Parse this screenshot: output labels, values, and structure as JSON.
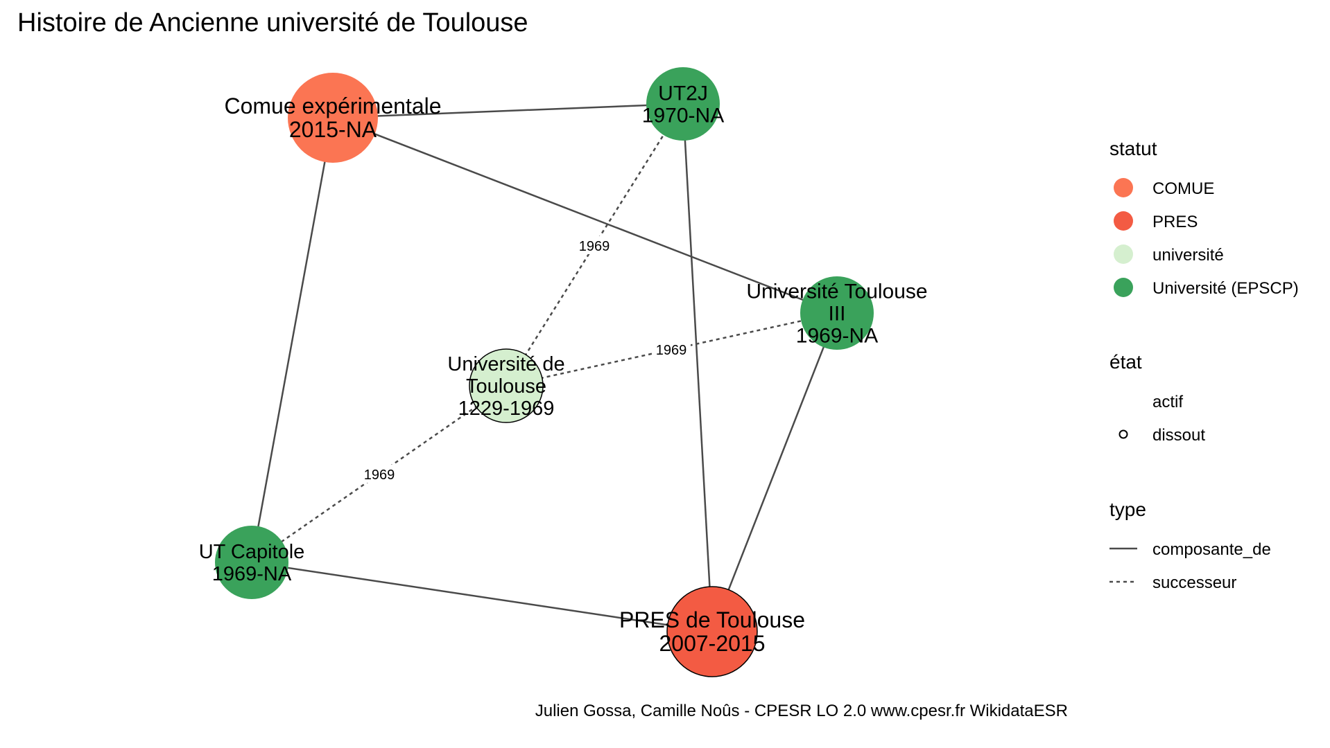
{
  "title": "Histoire de Ancienne université de Toulouse",
  "caption": "Julien Gossa, Camille Noûs - CPESR LO 2.0 www.cpesr.fr WikidataESR",
  "colors": {
    "COMUE": "#FB7553",
    "PRES": "#F35B43",
    "université": "#D5EFCF",
    "Université (EPSCP)": "#3AA25B",
    "edge": "#4a4a4a"
  },
  "nodes": [
    {
      "id": "comue",
      "lines": [
        "Comue expérimentale",
        "2015-NA"
      ],
      "statut": "COMUE",
      "etat": "actif"
    },
    {
      "id": "ut2j",
      "lines": [
        "UT2J",
        "1970-NA"
      ],
      "statut": "Université (EPSCP)",
      "etat": "actif"
    },
    {
      "id": "ut3",
      "lines": [
        "Université Toulouse",
        "III",
        "1969-NA"
      ],
      "statut": "Université (EPSCP)",
      "etat": "actif"
    },
    {
      "id": "udt",
      "lines": [
        "Université de",
        "Toulouse",
        "1229-1969"
      ],
      "statut": "université",
      "etat": "dissout"
    },
    {
      "id": "utc",
      "lines": [
        "UT Capitole",
        "1969-NA"
      ],
      "statut": "Université (EPSCP)",
      "etat": "actif"
    },
    {
      "id": "pres",
      "lines": [
        "PRES de Toulouse",
        "2007-2015"
      ],
      "statut": "PRES",
      "etat": "dissout"
    }
  ],
  "edges": [
    {
      "source": "comue",
      "target": "ut2j",
      "type": "composante_de",
      "label": ""
    },
    {
      "source": "comue",
      "target": "ut3",
      "type": "composante_de",
      "label": ""
    },
    {
      "source": "comue",
      "target": "utc",
      "type": "composante_de",
      "label": ""
    },
    {
      "source": "ut2j",
      "target": "pres",
      "type": "composante_de",
      "label": ""
    },
    {
      "source": "ut3",
      "target": "pres",
      "type": "composante_de",
      "label": ""
    },
    {
      "source": "utc",
      "target": "pres",
      "type": "composante_de",
      "label": ""
    },
    {
      "source": "udt",
      "target": "ut2j",
      "type": "successeur",
      "label": "1969"
    },
    {
      "source": "udt",
      "target": "ut3",
      "type": "successeur",
      "label": "1969"
    },
    {
      "source": "udt",
      "target": "utc",
      "type": "successeur",
      "label": "1969"
    }
  ],
  "legend": {
    "statut": {
      "title": "statut",
      "items": [
        "COMUE",
        "PRES",
        "université",
        "Université (EPSCP)"
      ]
    },
    "etat": {
      "title": "état",
      "items": [
        "actif",
        "dissout"
      ]
    },
    "type": {
      "title": "type",
      "items": [
        "composante_de",
        "successeur"
      ]
    }
  }
}
